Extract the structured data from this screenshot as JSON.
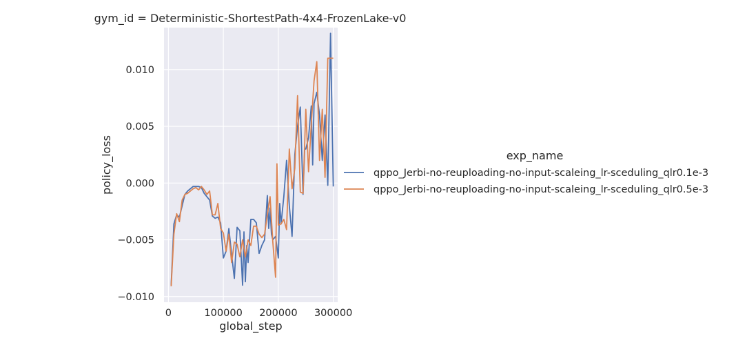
{
  "chart_data": {
    "type": "line",
    "title": "gym_id = Deterministic-ShortestPath-4x4-FrozenLake-v0",
    "xlabel": "global_step",
    "ylabel": "policy_loss",
    "xlim": [
      -8000,
      308000
    ],
    "ylim": [
      -0.0105,
      0.0137
    ],
    "xticks": [
      0,
      100000,
      200000,
      300000
    ],
    "xtick_labels": [
      "0",
      "100000",
      "200000",
      "300000"
    ],
    "yticks": [
      -0.01,
      -0.005,
      0.0,
      0.005,
      0.01
    ],
    "ytick_labels": [
      "−0.010",
      "−0.005",
      "0.000",
      "0.005",
      "0.010"
    ],
    "grid": true,
    "legend": {
      "title": "exp_name",
      "placement": "right"
    },
    "series": [
      {
        "name": "qppo_Jerbi-no-reuploading-no-input-scaleing_lr-sceduling_qlr0.1e-3",
        "color": "#4c72b0",
        "x": [
          5000,
          10000,
          15000,
          20000,
          25000,
          30000,
          35000,
          40000,
          45000,
          50000,
          55000,
          60000,
          65000,
          70000,
          75000,
          80000,
          85000,
          90000,
          95000,
          100000,
          105000,
          110000,
          115000,
          120000,
          125000,
          130000,
          135000,
          137500,
          140000,
          142500,
          145000,
          150000,
          155000,
          160000,
          165000,
          170000,
          175000,
          180000,
          182500,
          185000,
          187500,
          190000,
          195000,
          200000,
          202500,
          205000,
          210000,
          215000,
          220000,
          225000,
          230000,
          235000,
          240000,
          245000,
          248000,
          250000,
          255000,
          260000,
          262500,
          265000,
          270000,
          275000,
          280000,
          285000,
          290000,
          295000,
          300000
        ],
        "y": [
          -0.009,
          -0.0036,
          -0.0028,
          -0.003,
          -0.002,
          -0.001,
          -0.0007,
          -0.0005,
          -0.0003,
          -0.0003,
          -0.0003,
          -0.0004,
          -0.0009,
          -0.0012,
          -0.0015,
          -0.0029,
          -0.0031,
          -0.003,
          -0.0035,
          -0.0066,
          -0.006,
          -0.004,
          -0.0063,
          -0.0084,
          -0.0039,
          -0.0042,
          -0.009,
          -0.0043,
          -0.0087,
          -0.0055,
          -0.007,
          -0.0032,
          -0.0032,
          -0.0035,
          -0.0062,
          -0.0055,
          -0.005,
          -0.0011,
          -0.004,
          -0.0022,
          -0.0045,
          -0.005,
          -0.0047,
          -0.0066,
          -0.0018,
          -0.0036,
          -0.0012,
          0.002,
          -0.002,
          -0.0047,
          0.0025,
          0.005,
          0.0067,
          -0.001,
          0.003,
          0.003,
          0.004,
          0.0068,
          0.0016,
          0.007,
          0.008,
          0.006,
          0.002,
          0.006,
          -0.0002,
          0.0132,
          -0.0003
        ]
      },
      {
        "name": "qppo_Jerbi-no-reuploading-no-input-scaleing_lr-sceduling_qlr0.5e-3",
        "color": "#dd8452",
        "x": [
          5000,
          10000,
          15000,
          20000,
          25000,
          30000,
          35000,
          40000,
          45000,
          50000,
          55000,
          60000,
          65000,
          70000,
          75000,
          80000,
          85000,
          90000,
          95000,
          100000,
          105000,
          110000,
          115000,
          120000,
          125000,
          130000,
          135000,
          140000,
          145000,
          150000,
          155000,
          160000,
          165000,
          170000,
          175000,
          180000,
          185000,
          190000,
          195000,
          197500,
          200000,
          205000,
          210000,
          215000,
          220000,
          225000,
          230000,
          235000,
          240000,
          245000,
          250000,
          255000,
          260000,
          265000,
          270000,
          275000,
          280000,
          285000,
          290000,
          295000,
          300000
        ],
        "y": [
          -0.0091,
          -0.0045,
          -0.0027,
          -0.0034,
          -0.0015,
          -0.001,
          -0.0009,
          -0.0007,
          -0.0005,
          -0.0004,
          -0.0006,
          -0.0003,
          -0.0006,
          -0.001,
          -0.0007,
          -0.0028,
          -0.0028,
          -0.0018,
          -0.004,
          -0.0044,
          -0.006,
          -0.0045,
          -0.007,
          -0.0052,
          -0.0054,
          -0.0065,
          -0.005,
          -0.0065,
          -0.005,
          -0.0055,
          -0.0038,
          -0.0038,
          -0.0045,
          -0.0048,
          -0.0045,
          -0.0028,
          -0.0012,
          -0.0052,
          -0.0083,
          0.0017,
          -0.0037,
          -0.0036,
          -0.0032,
          -0.0041,
          0.003,
          -0.0005,
          0.0013,
          0.0077,
          -0.0008,
          -0.0009,
          0.0065,
          0.001,
          0.0052,
          0.009,
          0.0107,
          0.002,
          0.0065,
          0.0005,
          0.011,
          0.011,
          0.011
        ]
      }
    ]
  }
}
